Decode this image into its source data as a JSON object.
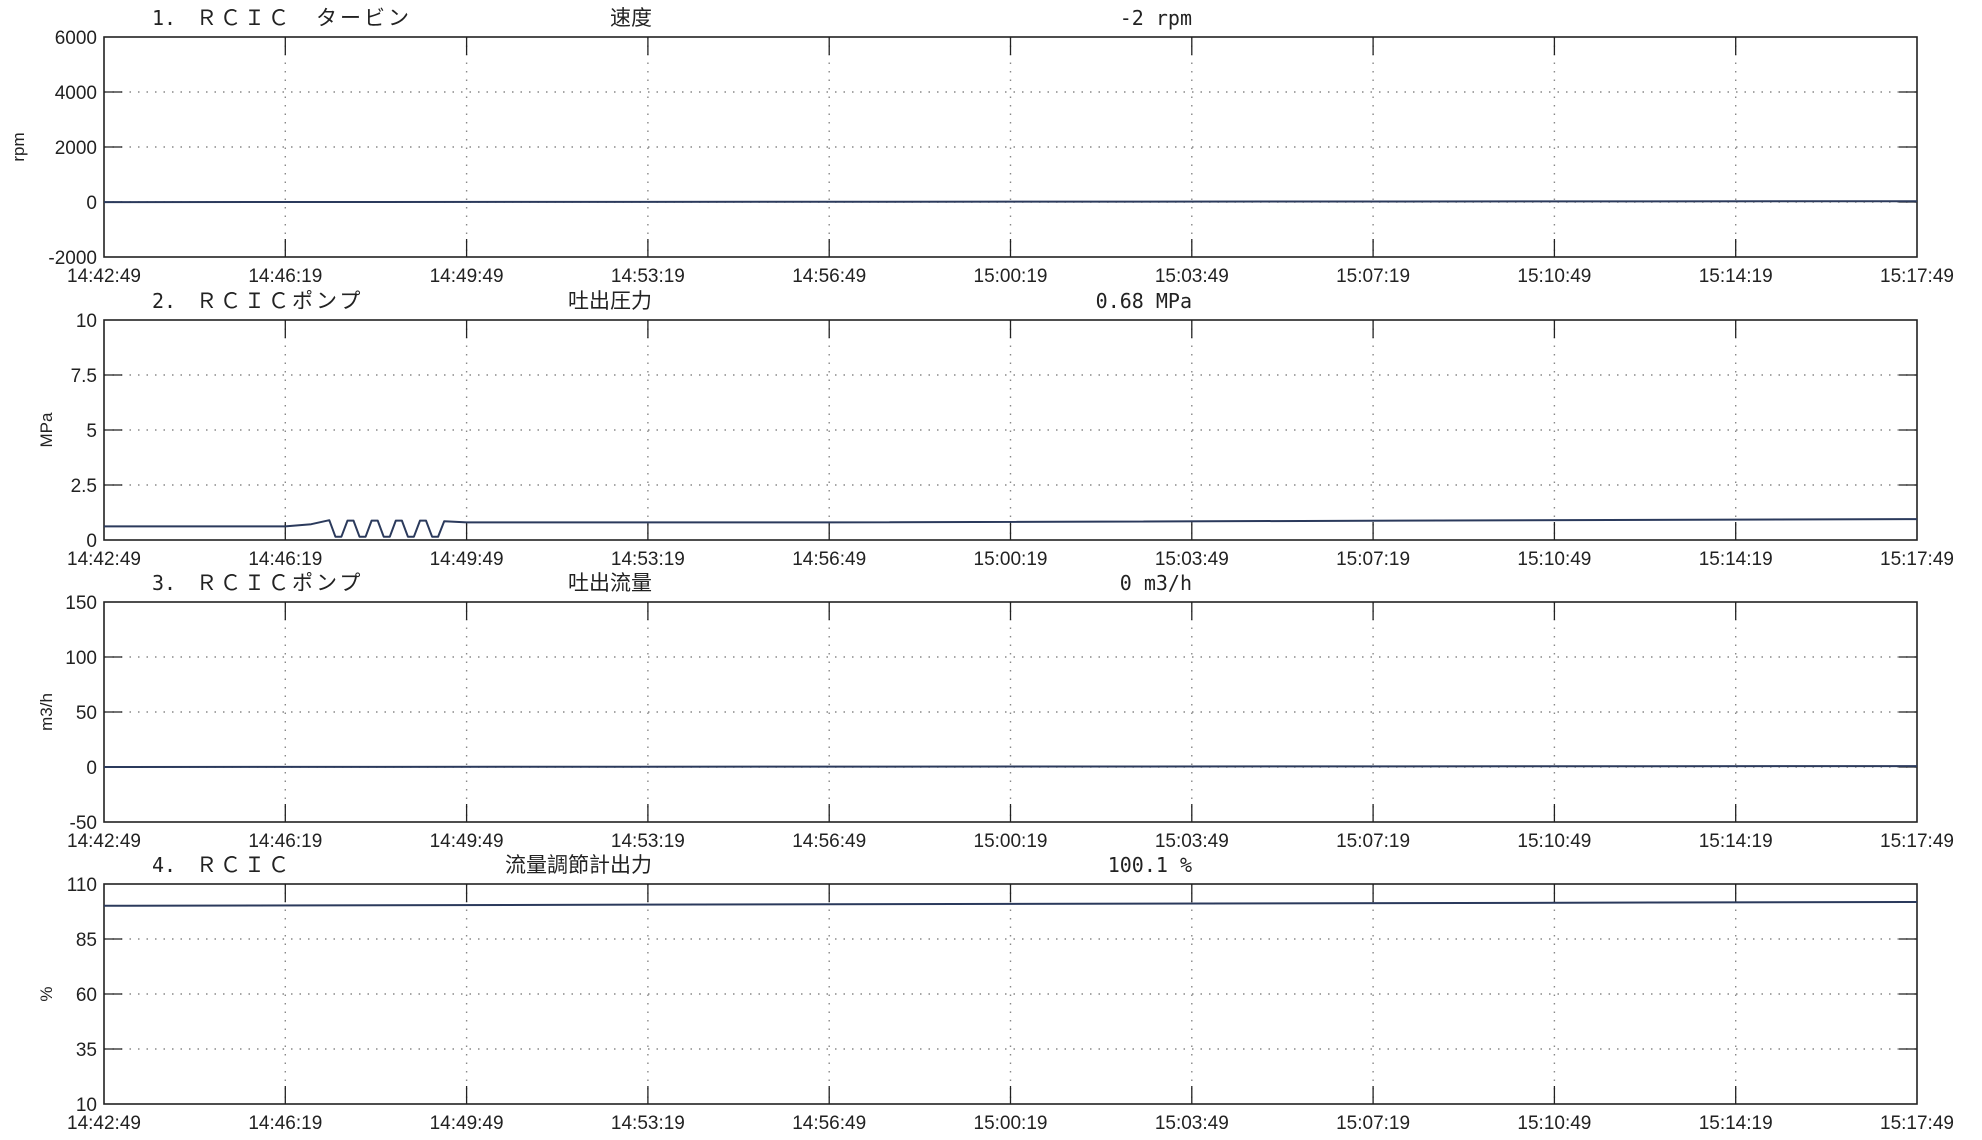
{
  "x_ticks": [
    "14:42:49",
    "14:46:19",
    "14:49:49",
    "14:53:19",
    "14:56:49",
    "15:00:19",
    "15:03:49",
    "15:07:19",
    "15:10:49",
    "15:14:19",
    "15:17:49"
  ],
  "chart_data": [
    {
      "type": "line",
      "number": "1.",
      "title_left": "ＲＣＩＣ　タービン",
      "title_mid": "速度",
      "title_value": "-2 rpm",
      "ylabel": "rpm",
      "ylim": [
        -2000,
        6000
      ],
      "yticks": [
        "6000",
        "4000",
        "2000",
        "0",
        "-2000"
      ],
      "ytick_values": [
        6000,
        4000,
        2000,
        0,
        -2000
      ],
      "grid": true,
      "series": [
        {
          "x": [
            "14:42:49",
            "15:17:49"
          ],
          "y": [
            -2,
            30
          ]
        }
      ]
    },
    {
      "type": "line",
      "number": "2.",
      "title_left": "ＲＣＩＣポンプ",
      "title_mid": "吐出圧力",
      "title_value": "0.68 MPa",
      "ylabel": "MPa",
      "ylim": [
        0,
        10
      ],
      "yticks": [
        "10",
        "7.5",
        "5",
        "2.5",
        "0"
      ],
      "ytick_values": [
        10,
        7.5,
        5,
        2.5,
        0
      ],
      "grid": true,
      "series": [
        {
          "x": [
            "14:42:49",
            "14:46:19",
            "14:46:49",
            "14:47:10",
            "14:47:17",
            "14:47:24",
            "14:47:31",
            "14:47:38",
            "14:47:45",
            "14:47:52",
            "14:47:59",
            "14:48:06",
            "14:48:13",
            "14:48:20",
            "14:48:27",
            "14:48:34",
            "14:48:41",
            "14:48:48",
            "14:48:55",
            "14:49:02",
            "14:49:09",
            "14:49:16",
            "14:49:23",
            "14:49:49",
            "14:56:49",
            "15:17:49"
          ],
          "y": [
            0.62,
            0.62,
            0.72,
            0.9,
            0.15,
            0.15,
            0.88,
            0.88,
            0.15,
            0.15,
            0.88,
            0.88,
            0.15,
            0.15,
            0.88,
            0.88,
            0.15,
            0.15,
            0.88,
            0.88,
            0.15,
            0.15,
            0.85,
            0.8,
            0.8,
            0.95
          ]
        }
      ]
    },
    {
      "type": "line",
      "number": "3.",
      "title_left": "ＲＣＩＣポンプ",
      "title_mid": "吐出流量",
      "title_value": "0 m3/h",
      "ylabel": "m3/h",
      "ylim": [
        -50,
        150
      ],
      "yticks": [
        "150",
        "100",
        "50",
        "0",
        "-50"
      ],
      "ytick_values": [
        150,
        100,
        50,
        0,
        -50
      ],
      "grid": true,
      "series": [
        {
          "x": [
            "14:42:49",
            "15:17:49"
          ],
          "y": [
            0,
            0.8
          ]
        }
      ]
    },
    {
      "type": "line",
      "number": "4.",
      "title_left": "ＲＣＩＣ",
      "title_mid": "流量調節計出力",
      "title_value": "100.1 %",
      "ylabel": "%",
      "ylim": [
        10,
        110
      ],
      "yticks": [
        "110",
        "85",
        "60",
        "35",
        "10"
      ],
      "ytick_values": [
        110,
        85,
        60,
        35,
        10
      ],
      "grid": true,
      "series": [
        {
          "x": [
            "14:42:49",
            "15:17:49"
          ],
          "y": [
            100.1,
            101.8
          ]
        }
      ]
    }
  ],
  "colors": {
    "line": "#2b3a5c",
    "axis": "#222222",
    "grid": "#888888"
  }
}
